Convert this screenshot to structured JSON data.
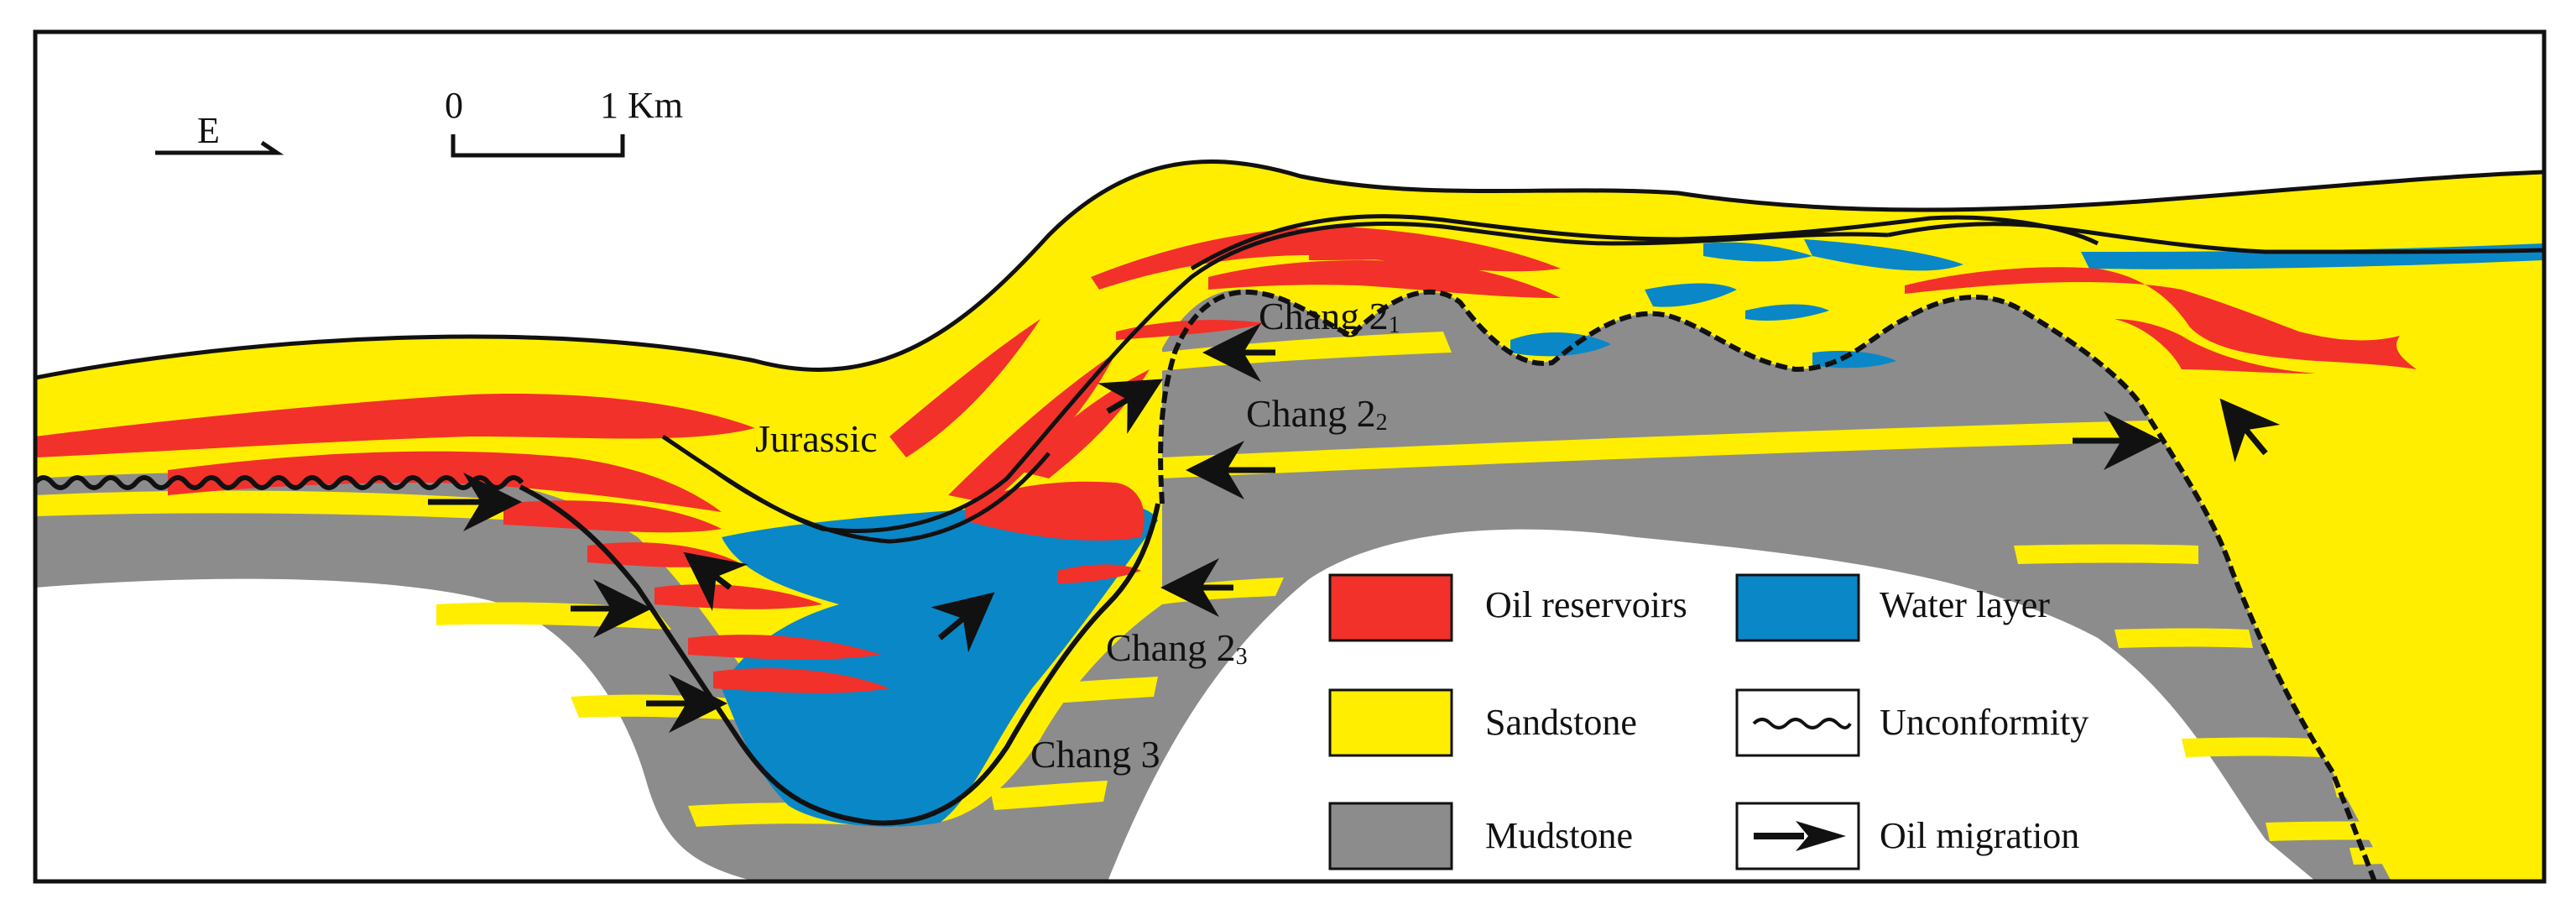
{
  "orientation": {
    "label": "E"
  },
  "scale_bar": {
    "start": "0",
    "end": "1 Km"
  },
  "units": {
    "jurassic": "Jurassic",
    "chang21": "Chang 2",
    "chang21_sub": "1",
    "chang22": "Chang 2",
    "chang22_sub": "2",
    "chang23": "Chang 2",
    "chang23_sub": "3",
    "chang3": "Chang 3"
  },
  "legend": {
    "oil": "Oil reservoirs",
    "water": "Water layer",
    "sand": "Sandstone",
    "unconformity": "Unconformity",
    "mud": "Mudstone",
    "migration": "Oil migration"
  },
  "colors": {
    "oil": "#f2312a",
    "water": "#0a87c6",
    "sand": "#ffee00",
    "mud": "#8c8c8c",
    "frame": "#111111"
  }
}
